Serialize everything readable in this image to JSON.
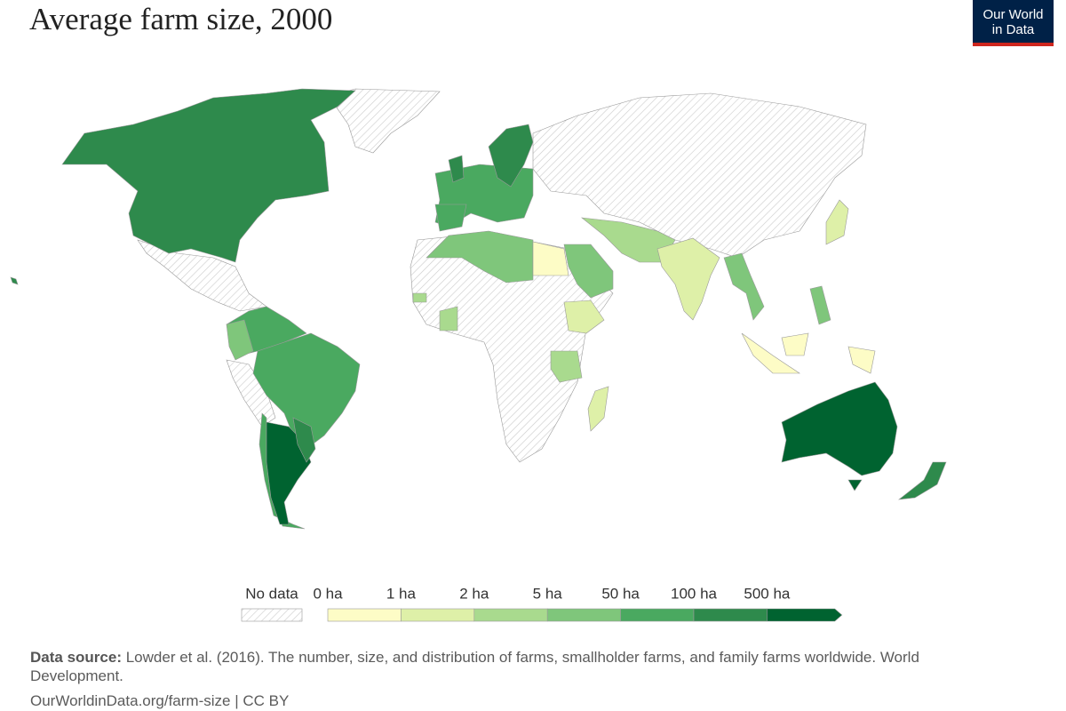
{
  "header": {
    "title": "Average farm size, 2000",
    "logo": [
      "Our World",
      "in Data"
    ]
  },
  "legend": {
    "no_data": "No data",
    "labels": [
      "0 ha",
      "1 ha",
      "2 ha",
      "5 ha",
      "50 ha",
      "100 ha",
      "500 ha"
    ],
    "colors": [
      "#fdfcc6",
      "#def0a8",
      "#a9da8e",
      "#7fc67b",
      "#4aa960",
      "#2e8a4c",
      "#006330"
    ]
  },
  "footer": {
    "source_label": "Data source:",
    "source_text": "Lowder et al. (2016). The number, size, and distribution of farms, smallholder farms, and family farms worldwide. World Development.",
    "url": "OurWorldinData.org/farm-size | CC BY"
  }
}
